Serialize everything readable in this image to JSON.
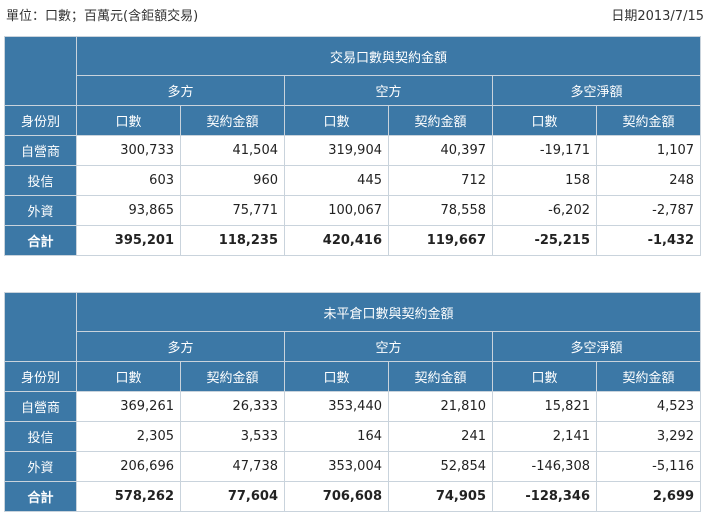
{
  "header": {
    "unit": "單位：口數；百萬元(含鉅額交易)",
    "date": "日期2013/7/15"
  },
  "tables": [
    {
      "title": "交易口數與契約金額",
      "groups": [
        "多方",
        "空方",
        "多空淨額"
      ],
      "identity_label": "身份別",
      "cols": [
        "口數",
        "契約金額",
        "口數",
        "契約金額",
        "口數",
        "契約金額"
      ],
      "rows": [
        {
          "label": "自營商",
          "values": [
            "300,733",
            "41,504",
            "319,904",
            "40,397",
            "-19,171",
            "1,107"
          ]
        },
        {
          "label": "投信",
          "values": [
            "603",
            "960",
            "445",
            "712",
            "158",
            "248"
          ]
        },
        {
          "label": "外資",
          "values": [
            "93,865",
            "75,771",
            "100,067",
            "78,558",
            "-6,202",
            "-2,787"
          ]
        },
        {
          "label": "合計",
          "values": [
            "395,201",
            "118,235",
            "420,416",
            "119,667",
            "-25,215",
            "-1,432"
          ]
        }
      ]
    },
    {
      "title": "未平倉口數與契約金額",
      "groups": [
        "多方",
        "空方",
        "多空淨額"
      ],
      "identity_label": "身份別",
      "cols": [
        "口數",
        "契約金額",
        "口數",
        "契約金額",
        "口數",
        "契約金額"
      ],
      "rows": [
        {
          "label": "自營商",
          "values": [
            "369,261",
            "26,333",
            "353,440",
            "21,810",
            "15,821",
            "4,523"
          ]
        },
        {
          "label": "投信",
          "values": [
            "2,305",
            "3,533",
            "164",
            "241",
            "2,141",
            "3,292"
          ]
        },
        {
          "label": "外資",
          "values": [
            "206,696",
            "47,738",
            "353,004",
            "52,854",
            "-146,308",
            "-5,116"
          ]
        },
        {
          "label": "合計",
          "values": [
            "578,262",
            "77,604",
            "706,608",
            "74,905",
            "-128,346",
            "2,699"
          ]
        }
      ]
    }
  ]
}
